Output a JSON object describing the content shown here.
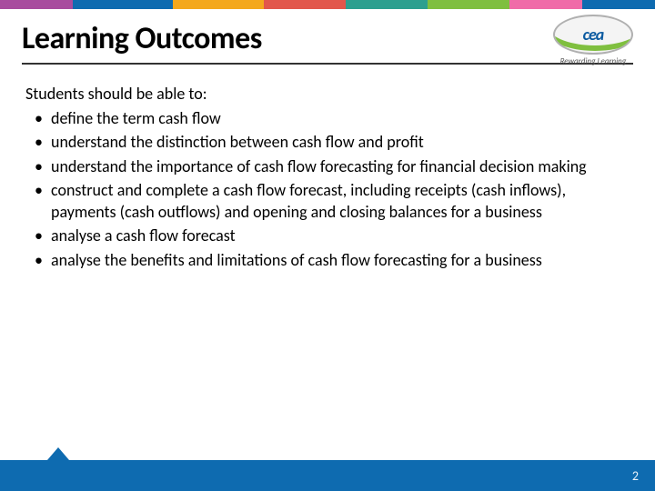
{
  "stripe_colors": [
    "#a84b9e",
    "#0e6bb0",
    "#f4a81d",
    "#e2574c",
    "#2c9f8f",
    "#7fbf3f",
    "#f06ba8",
    "#0e6bb0"
  ],
  "stripe_widths": [
    80,
    110,
    100,
    90,
    90,
    90,
    80,
    80
  ],
  "title": "Learning Outcomes",
  "logo": {
    "text": "cea",
    "tagline": "Rewarding Learning"
  },
  "intro": "Students should be able to:",
  "bullets": [
    "define the term cash flow",
    "understand the distinction between cash flow and profit",
    "understand the importance of cash flow forecasting for financial decision making",
    "construct and complete a cash flow forecast, including receipts (cash inflows), payments (cash outflows) and opening and closing balances for a business",
    "analyse a cash flow forecast",
    "analyse the benefits and limitations of cash flow forecasting for a business"
  ],
  "footer": {
    "bar_color": "#0e6bb0",
    "page_number": "2"
  }
}
